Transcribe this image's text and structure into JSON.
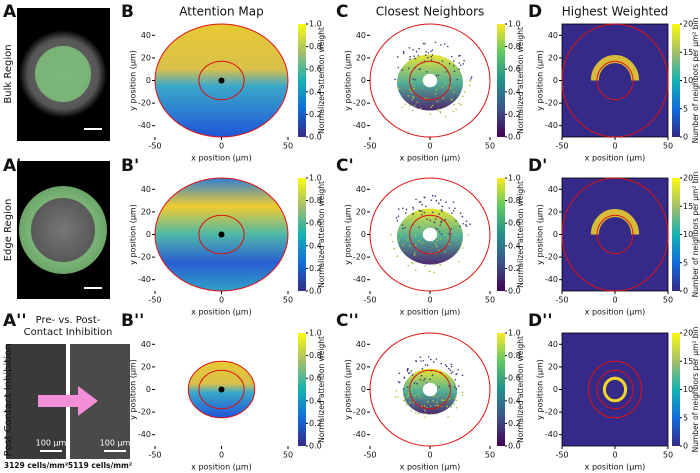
{
  "rows": [
    {
      "label": "A",
      "name": "Bulk Region"
    },
    {
      "label": "A'",
      "name": "Edge Region"
    },
    {
      "label": "A''",
      "name": "Post Contact Inhibition"
    }
  ],
  "columns": [
    {
      "title": "Attention Map"
    },
    {
      "title": "Closest Neighbors"
    },
    {
      "title": "Highest Weighted"
    }
  ],
  "panel_labels": [
    [
      "B",
      "C",
      "D"
    ],
    [
      "B'",
      "C'",
      "D'"
    ],
    [
      "B''",
      "C''",
      "D''"
    ]
  ],
  "axes": {
    "xlabel": "x position (μm)",
    "ylabel": "y position (μm)",
    "xlim": [
      -50,
      50
    ],
    "ylim": [
      -50,
      50
    ],
    "xticks": [
      -50,
      0,
      50
    ],
    "yticks": [
      -40,
      -20,
      0,
      20,
      40
    ]
  },
  "colorbars": [
    {
      "label": "Normalized attention weight",
      "lim": [
        0,
        1
      ],
      "ticks": [
        {
          "value": 0,
          "label": "0.0"
        },
        {
          "value": 0.2,
          "label": "0.2"
        },
        {
          "value": 0.4,
          "label": "0.4"
        },
        {
          "value": 0.6,
          "label": "0.6"
        },
        {
          "value": 0.8,
          "label": "0.8"
        },
        {
          "value": 1,
          "label": "1.0"
        }
      ]
    },
    {
      "label": "Normalized attention weight",
      "lim": [
        0,
        1
      ],
      "ticks": [
        {
          "value": 0,
          "label": "0.0"
        },
        {
          "value": 0.2,
          "label": "0.2"
        },
        {
          "value": 0.4,
          "label": "0.4"
        },
        {
          "value": 0.6,
          "label": "0.6"
        },
        {
          "value": 0.8,
          "label": "0.8"
        },
        {
          "value": 1,
          "label": "1.0"
        }
      ]
    },
    {
      "label": "Number of neighbors per μm² bin",
      "lim": [
        0,
        20
      ],
      "ticks": [
        0,
        5,
        10,
        15,
        20
      ]
    }
  ],
  "inset": {
    "title_lines": [
      "Pre- vs. Post-",
      "Contact Inhibition"
    ],
    "scale_bars": [
      "100 μm",
      "100 μm"
    ],
    "densities": [
      "3129 cells/mm²",
      "5119 cells/mm²"
    ]
  }
}
